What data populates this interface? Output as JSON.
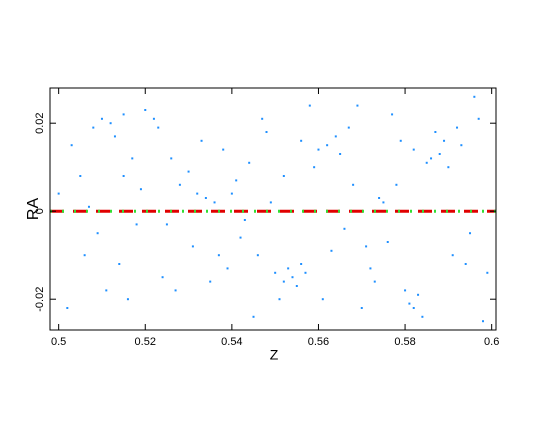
{
  "chart_data": {
    "type": "scatter",
    "xlabel": "Z",
    "ylabel": "RA",
    "x": [
      0.503,
      0.506,
      0.508,
      0.51,
      0.512,
      0.513,
      0.515,
      0.511,
      0.514,
      0.517,
      0.509,
      0.505,
      0.52,
      0.522,
      0.524,
      0.519,
      0.516,
      0.526,
      0.528,
      0.53,
      0.532,
      0.531,
      0.534,
      0.536,
      0.538,
      0.54,
      0.542,
      0.539,
      0.544,
      0.546,
      0.548,
      0.55,
      0.552,
      0.553,
      0.554,
      0.555,
      0.556,
      0.557,
      0.558,
      0.552,
      0.551,
      0.556,
      0.559,
      0.56,
      0.562,
      0.564,
      0.565,
      0.566,
      0.567,
      0.563,
      0.568,
      0.57,
      0.572,
      0.574,
      0.575,
      0.576,
      0.578,
      0.579,
      0.58,
      0.581,
      0.582,
      0.583,
      0.584,
      0.585,
      0.582,
      0.586,
      0.588,
      0.589,
      0.59,
      0.591,
      0.592,
      0.593,
      0.595,
      0.597,
      0.599,
      0.5,
      0.502,
      0.507,
      0.518,
      0.523,
      0.527,
      0.533,
      0.537,
      0.541,
      0.545,
      0.549,
      0.561,
      0.569,
      0.573,
      0.577,
      0.587,
      0.594,
      0.596,
      0.598,
      0.515,
      0.525,
      0.535,
      0.543,
      0.547,
      0.571
    ],
    "values": [
      0.015,
      -0.01,
      0.019,
      0.021,
      0.02,
      0.017,
      0.022,
      -0.018,
      -0.012,
      0.012,
      -0.005,
      0.008,
      0.023,
      0.021,
      -0.015,
      0.005,
      -0.02,
      0.012,
      0.006,
      0.009,
      0.004,
      -0.008,
      0.003,
      0.002,
      0.014,
      0.004,
      -0.006,
      -0.013,
      0.011,
      -0.01,
      0.018,
      -0.014,
      -0.016,
      -0.013,
      -0.015,
      -0.017,
      -0.012,
      -0.014,
      0.024,
      0.008,
      -0.02,
      0.016,
      0.01,
      0.014,
      0.015,
      0.017,
      0.013,
      -0.004,
      0.019,
      -0.009,
      0.006,
      -0.022,
      -0.013,
      0.003,
      0.002,
      -0.007,
      0.006,
      0.016,
      -0.018,
      -0.021,
      -0.022,
      -0.019,
      -0.024,
      0.011,
      0.014,
      0.012,
      0.013,
      0.016,
      0.01,
      -0.01,
      0.019,
      0.015,
      -0.005,
      0.021,
      -0.014,
      0.004,
      -0.022,
      0.001,
      -0.003,
      0.019,
      -0.018,
      0.016,
      -0.01,
      0.007,
      -0.024,
      0.002,
      -0.02,
      0.024,
      -0.016,
      0.022,
      0.018,
      -0.012,
      0.026,
      -0.025,
      0.008,
      -0.003,
      -0.016,
      -0.002,
      0.021,
      -0.008
    ],
    "color": "#1e8fff",
    "xlim": [
      0.498,
      0.601
    ],
    "xticks": [
      0.5,
      0.52,
      0.54,
      0.56,
      0.58,
      0.6
    ],
    "ylim": [
      -0.027,
      0.028
    ],
    "yticks": [
      -0.02,
      0,
      0.02
    ],
    "reference_lines": [
      {
        "y": 0,
        "color": "#e00000",
        "dash": "14 9"
      },
      {
        "y": 0,
        "color": "#33dd33",
        "dash": "2 10"
      }
    ]
  }
}
